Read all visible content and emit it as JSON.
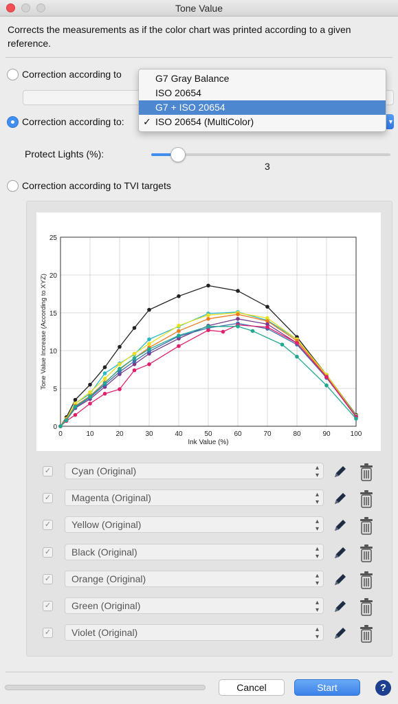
{
  "window": {
    "title": "Tone Value"
  },
  "description": "Corrects the measurements as if the color chart was printed according to a given reference.",
  "options": {
    "option1_label": "Correction according to",
    "option2_label": "Correction according to:",
    "option3_label": "Correction according to TVI targets",
    "selected_option": 2
  },
  "reference_menu": {
    "items": [
      "G7 Gray Balance",
      "ISO 20654",
      "G7 + ISO 20654",
      "ISO 20654 (MultiColor)"
    ],
    "highlighted": "G7 + ISO 20654",
    "checked": "ISO 20654 (MultiColor)"
  },
  "protect_lights": {
    "label": "Protect Lights (%):",
    "value": "3",
    "fraction": 0.08
  },
  "chart_data": {
    "type": "line",
    "title": "",
    "xlabel": "Ink Value (%)",
    "ylabel": "Tone Value Increase (According to XYZ)",
    "xlim": [
      0,
      100
    ],
    "ylim": [
      0,
      25
    ],
    "x_ticks": [
      "0",
      "10",
      "20",
      "30",
      "40",
      "50",
      "60",
      "70",
      "80",
      "90",
      "100"
    ],
    "y_ticks": [
      "0",
      "5",
      "10",
      "15",
      "20",
      "25"
    ],
    "grid": true,
    "series": [
      {
        "color": "#222222",
        "x": [
          0,
          2,
          5,
          10,
          15,
          20,
          25,
          30,
          40,
          50,
          60,
          70,
          80,
          90,
          100
        ],
        "y": [
          0,
          1.2,
          3.5,
          5.5,
          7.8,
          10.5,
          13.0,
          15.4,
          17.2,
          18.6,
          17.9,
          15.8,
          11.8,
          6.8,
          1.5
        ]
      },
      {
        "color": "#28b8c8",
        "x": [
          0,
          2,
          5,
          10,
          15,
          20,
          25,
          30,
          40,
          50,
          60,
          70,
          80,
          90,
          100
        ],
        "y": [
          0,
          1.0,
          3.0,
          4.3,
          7.0,
          8.3,
          9.5,
          11.5,
          13.2,
          14.9,
          15.1,
          14.0,
          11.5,
          6.8,
          1.3
        ]
      },
      {
        "color": "#e8e020",
        "x": [
          0,
          2,
          5,
          10,
          15,
          20,
          25,
          30,
          40,
          50,
          60,
          70,
          80,
          90,
          100
        ],
        "y": [
          0,
          1.0,
          3.0,
          4.5,
          6.3,
          8.2,
          9.6,
          10.9,
          13.3,
          14.7,
          15.0,
          14.3,
          11.5,
          6.8,
          1.4
        ]
      },
      {
        "color": "#f07a20",
        "x": [
          0,
          2,
          5,
          10,
          15,
          20,
          25,
          30,
          40,
          50,
          60,
          70,
          80,
          90,
          100
        ],
        "y": [
          0,
          0.9,
          2.7,
          4.0,
          5.8,
          7.5,
          9.0,
          10.4,
          12.6,
          14.2,
          14.8,
          13.9,
          11.3,
          6.6,
          1.3
        ]
      },
      {
        "color": "#7a3a8c",
        "x": [
          0,
          2,
          5,
          10,
          15,
          20,
          25,
          30,
          40,
          50,
          60,
          70,
          80,
          90,
          100
        ],
        "y": [
          0,
          0.8,
          2.4,
          3.6,
          5.2,
          6.9,
          8.2,
          9.6,
          11.6,
          13.3,
          14.2,
          13.5,
          11.0,
          6.5,
          1.3
        ]
      },
      {
        "color": "#3a6fb0",
        "x": [
          0,
          2,
          5,
          10,
          15,
          20,
          25,
          30,
          40,
          50,
          60,
          70,
          80,
          90,
          100
        ],
        "y": [
          0,
          0.8,
          2.5,
          3.8,
          5.5,
          7.2,
          8.6,
          9.9,
          11.9,
          13.0,
          13.6,
          12.9,
          10.8,
          6.4,
          1.3
        ]
      },
      {
        "color": "#e0206c",
        "x": [
          0,
          2,
          5,
          10,
          15,
          20,
          25,
          30,
          40,
          50,
          55,
          60,
          70,
          80,
          90,
          100
        ],
        "y": [
          0,
          0.7,
          1.5,
          3.0,
          4.3,
          4.9,
          7.4,
          8.2,
          10.6,
          12.7,
          12.5,
          13.4,
          13.1,
          11.0,
          6.5,
          1.2
        ]
      },
      {
        "color": "#20a890",
        "x": [
          0,
          2,
          5,
          10,
          15,
          20,
          25,
          30,
          40,
          50,
          60,
          65,
          75,
          80,
          90,
          100
        ],
        "y": [
          0,
          0.8,
          2.6,
          3.9,
          5.7,
          7.6,
          9.0,
          10.2,
          12.0,
          13.2,
          13.2,
          12.6,
          10.8,
          9.2,
          5.4,
          1.0
        ]
      }
    ]
  },
  "series_rows": [
    {
      "label": "Cyan (Original)",
      "checked": "✓"
    },
    {
      "label": "Magenta (Original)",
      "checked": "✓"
    },
    {
      "label": "Yellow (Original)",
      "checked": "✓"
    },
    {
      "label": "Black (Original)",
      "checked": "✓"
    },
    {
      "label": "Orange (Original)",
      "checked": "✓"
    },
    {
      "label": "Green (Original)",
      "checked": "✓"
    },
    {
      "label": "Violet (Original)",
      "checked": "✓"
    }
  ],
  "footer": {
    "cancel_label": "Cancel",
    "start_label": "Start",
    "help_label": "?"
  },
  "colors": {
    "accent": "#3f8ef0",
    "menu_highlight": "#4d87cf",
    "help_bg": "#1c3f8f"
  }
}
